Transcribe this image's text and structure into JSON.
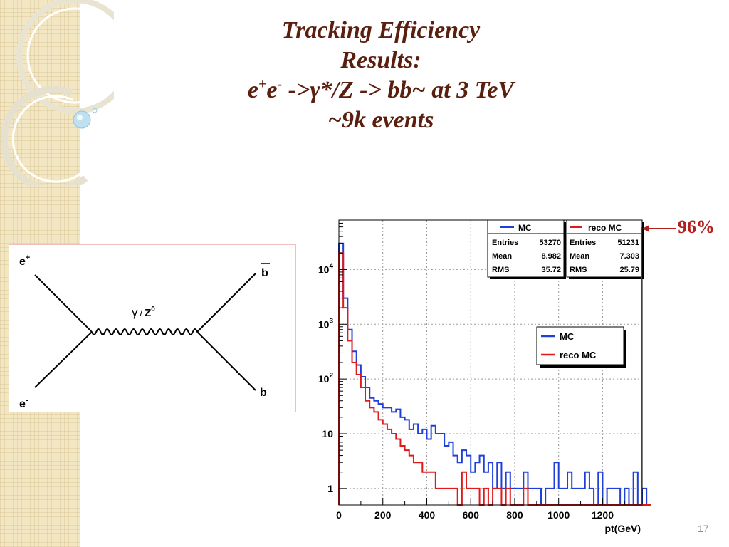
{
  "slide": {
    "title_line1": "Tracking Efficiency",
    "title_line2": "Results:",
    "title_line3_e1": "e",
    "title_line3_sup1": "+",
    "title_line3_e2": "e",
    "title_line3_sup2": "-",
    "title_line3_rest": " ->γ*/Z -> bb~ at 3 TeV",
    "title_line4": "~9k events",
    "page_number": "17",
    "efficiency_label": "96%"
  },
  "feynman": {
    "e_plus": "e",
    "e_plus_sup": "+",
    "e_minus": "e",
    "e_minus_sup": "-",
    "b_bar": "b",
    "b": "b",
    "boson_gamma": "γ",
    "boson_sep": "/",
    "boson_z": "Z",
    "boson_z_sup": "0"
  },
  "stats": {
    "mc": {
      "title": "MC",
      "entries_label": "Entries",
      "entries": "53270",
      "mean_label": "Mean",
      "mean": "8.982",
      "rms_label": "RMS",
      "rms": "35.72"
    },
    "reco": {
      "title": "reco MC",
      "entries_label": "Entries",
      "entries": "51231",
      "mean_label": "Mean",
      "mean": "7.303",
      "rms_label": "RMS",
      "rms": "25.79"
    }
  },
  "colors": {
    "mc": "#1f3fd8",
    "reco": "#e01a1a",
    "title": "#5b1f10",
    "arrow": "#b22020"
  },
  "chart_data": {
    "type": "histogram",
    "xlabel": "pt(GeV)",
    "ylabel": "",
    "xlim": [
      0,
      1380
    ],
    "ylim": [
      0.5,
      80000
    ],
    "log_y": true,
    "grid": true,
    "legend": {
      "placement": "center-right",
      "entries": [
        "MC",
        "reco MC"
      ]
    },
    "x_ticks": [
      0,
      200,
      400,
      600,
      800,
      1000,
      1200
    ],
    "x_tick_labels": [
      "0",
      "200",
      "400",
      "600",
      "800",
      "1000",
      "1200"
    ],
    "y_ticks": [
      1,
      10,
      100,
      1000,
      10000
    ],
    "y_tick_labels": [
      {
        "base": "1",
        "exp": ""
      },
      {
        "base": "10",
        "exp": ""
      },
      {
        "base": "10",
        "exp": "2"
      },
      {
        "base": "10",
        "exp": "3"
      },
      {
        "base": "10",
        "exp": "4"
      }
    ],
    "bin_width": 20,
    "series": [
      {
        "name": "MC",
        "values": [
          30000,
          3000,
          800,
          320,
          180,
          110,
          70,
          45,
          40,
          35,
          30,
          30,
          25,
          28,
          20,
          18,
          12,
          15,
          10,
          12,
          8,
          14,
          10,
          10,
          6,
          7,
          4,
          3,
          5,
          4,
          2,
          3,
          4,
          2,
          3,
          1,
          3,
          1,
          2,
          1,
          1,
          1,
          2,
          1,
          1,
          1,
          0,
          1,
          1,
          3,
          1,
          1,
          2,
          1,
          1,
          1,
          2,
          1,
          0,
          2,
          0,
          1,
          1,
          1,
          0,
          1,
          0,
          2,
          0,
          1,
          0,
          0
        ]
      },
      {
        "name": "reco MC",
        "values": [
          20000,
          2000,
          500,
          200,
          120,
          70,
          40,
          30,
          25,
          18,
          15,
          12,
          10,
          8,
          6,
          5,
          4,
          3,
          3,
          2,
          2,
          2,
          1,
          1,
          1,
          1,
          1,
          0,
          2,
          1,
          1,
          1,
          0,
          1,
          0,
          1,
          1,
          0,
          1,
          0,
          0,
          0,
          1,
          0,
          0,
          0,
          0,
          0,
          0,
          0,
          0,
          0,
          0,
          0,
          0,
          0,
          0,
          0,
          0,
          0,
          0,
          0,
          0,
          0,
          0,
          0,
          0,
          0,
          0,
          0,
          0,
          0
        ]
      }
    ]
  }
}
